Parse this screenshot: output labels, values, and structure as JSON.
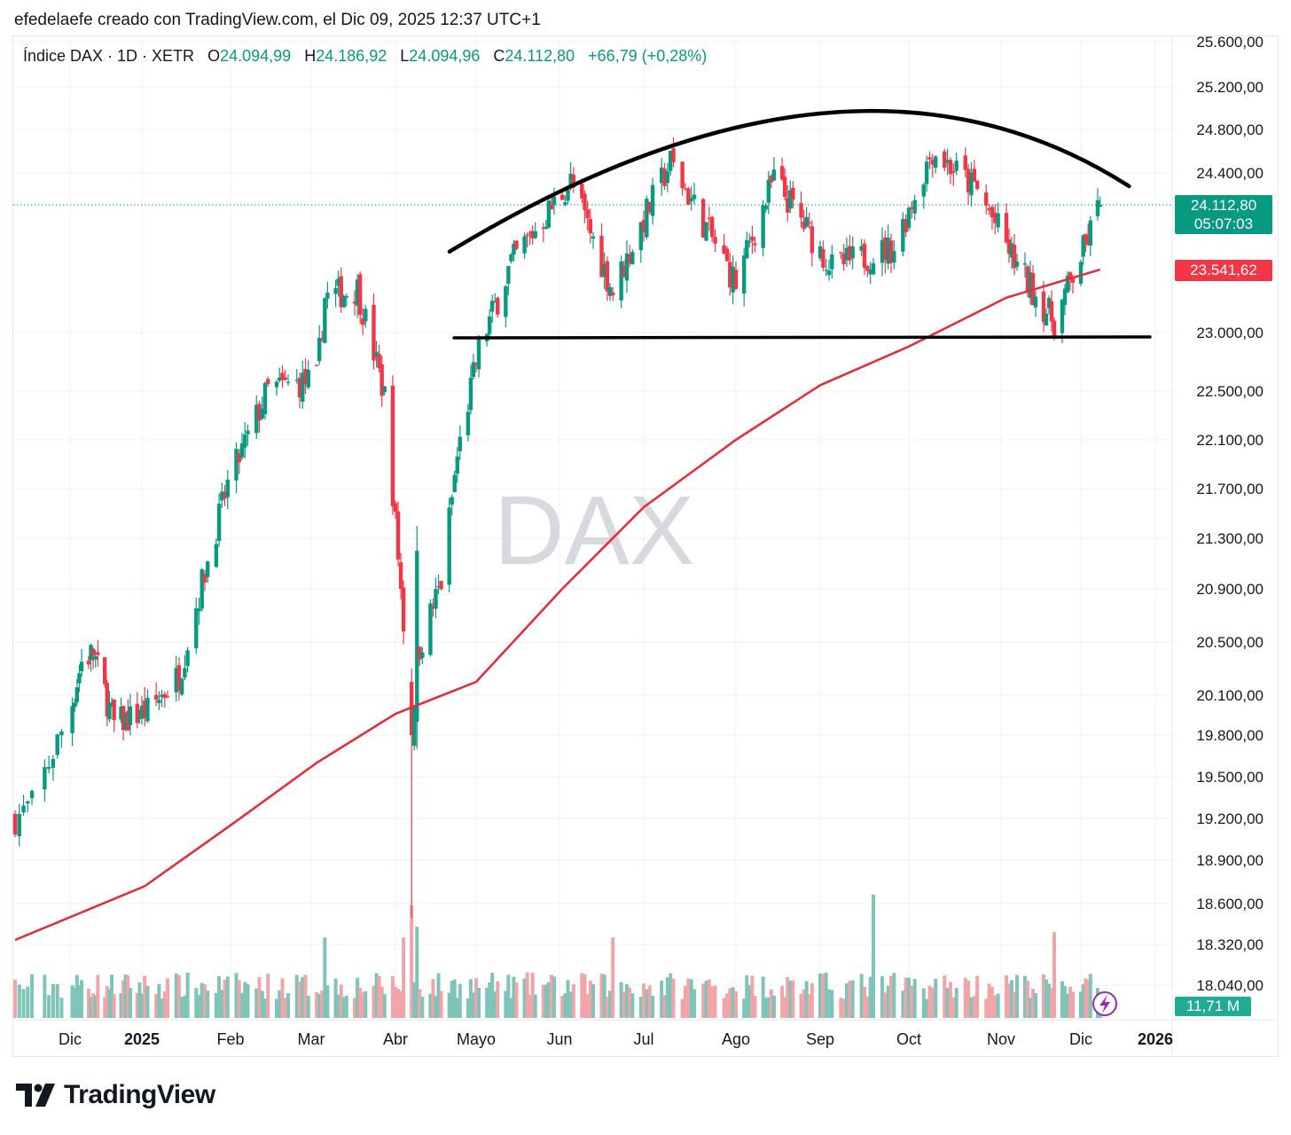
{
  "header": {
    "caption": "efedelaefe creado con TradingView.com, el Dic 09, 2025 12:37 UTC+1"
  },
  "legend": {
    "symbol": "Índice DAX · 1D · XETR",
    "open_label": "O",
    "open": "24.094,99",
    "high_label": "H",
    "high": "24.186,92",
    "low_label": "L",
    "low": "24.094,96",
    "close_label": "C",
    "close": "24.112,80",
    "change": "+66,79 (+0,28%)"
  },
  "watermark": "DAX",
  "price_tags": {
    "last_price": "24.112,80",
    "countdown": "05:07:03",
    "ma_value": "23.541,62",
    "volume": "11,71 M"
  },
  "footer": {
    "brand": "TradingView"
  },
  "colors": {
    "up": "#089981",
    "down": "#f23645",
    "ma": "#e0303e",
    "vol_up": "#7fc4b8",
    "vol_down": "#f2a5a9",
    "trendline": "#000000"
  },
  "chart_data": {
    "type": "candlestick",
    "title": "Índice DAX · 1D · XETR",
    "xlabel": "",
    "ylabel": "",
    "y_axis_ticks": [
      "25.600,00",
      "25.200,00",
      "24.800,00",
      "24.400,00",
      "23.000,00",
      "22.500,00",
      "22.100,00",
      "21.700,00",
      "21.300,00",
      "20.900,00",
      "20.500,00",
      "20.100,00",
      "19.800,00",
      "19.500,00",
      "19.200,00",
      "18.900,00",
      "18.600,00",
      "18.320,00",
      "18.040,00"
    ],
    "y_axis_values": [
      25600,
      25200,
      24800,
      24400,
      23000,
      22500,
      22100,
      21700,
      21300,
      20900,
      20500,
      20100,
      19800,
      19500,
      19200,
      18900,
      18600,
      18320,
      18040
    ],
    "x_axis_ticks": [
      "Dic",
      "2025",
      "Feb",
      "Mar",
      "Abr",
      "Mayo",
      "Jun",
      "Jul",
      "Ago",
      "Sep",
      "Oct",
      "Nov",
      "Dic",
      "2026"
    ],
    "x_axis_bold": [
      "2025",
      "2026"
    ],
    "last_price": 24112.8,
    "ma_last": 23541.62,
    "series_close_keypoints": [
      {
        "date": "2024-11-18",
        "close": 19200
      },
      {
        "date": "2024-11-22",
        "close": 19300
      },
      {
        "date": "2024-12-06",
        "close": 20350
      },
      {
        "date": "2024-12-11",
        "close": 20420
      },
      {
        "date": "2024-12-20",
        "close": 19880
      },
      {
        "date": "2025-01-03",
        "close": 19980
      },
      {
        "date": "2025-01-14",
        "close": 20250
      },
      {
        "date": "2025-01-31",
        "close": 21730
      },
      {
        "date": "2025-02-14",
        "close": 22510
      },
      {
        "date": "2025-03-03",
        "close": 22600
      },
      {
        "date": "2025-03-06",
        "close": 23300
      },
      {
        "date": "2025-03-18",
        "close": 23380
      },
      {
        "date": "2025-03-28",
        "close": 22460
      },
      {
        "date": "2025-04-04",
        "close": 20640
      },
      {
        "date": "2025-04-07",
        "close": 19790
      },
      {
        "date": "2025-04-09",
        "close": 20400
      },
      {
        "date": "2025-04-18",
        "close": 20950
      },
      {
        "date": "2025-04-24",
        "close": 21960
      },
      {
        "date": "2025-05-02",
        "close": 22850
      },
      {
        "date": "2025-05-14",
        "close": 23600
      },
      {
        "date": "2025-06-05",
        "close": 24320
      },
      {
        "date": "2025-06-20",
        "close": 23350
      },
      {
        "date": "2025-07-10",
        "close": 24500
      },
      {
        "date": "2025-08-01",
        "close": 23420
      },
      {
        "date": "2025-08-15",
        "close": 24350
      },
      {
        "date": "2025-09-05",
        "close": 23560
      },
      {
        "date": "2025-09-26",
        "close": 23740
      },
      {
        "date": "2025-10-09",
        "close": 24610
      },
      {
        "date": "2025-10-24",
        "close": 24240
      },
      {
        "date": "2025-11-07",
        "close": 23570
      },
      {
        "date": "2025-11-21",
        "close": 23090
      },
      {
        "date": "2025-12-02",
        "close": 23710
      },
      {
        "date": "2025-12-09",
        "close": 24112.8
      }
    ],
    "moving_average_keypoints": [
      {
        "date": "2024-11-18",
        "value": 18350
      },
      {
        "date": "2025-01-02",
        "value": 18720
      },
      {
        "date": "2025-02-03",
        "value": 19180
      },
      {
        "date": "2025-03-03",
        "value": 19600
      },
      {
        "date": "2025-04-01",
        "value": 19960
      },
      {
        "date": "2025-05-01",
        "value": 20200
      },
      {
        "date": "2025-06-02",
        "value": 20900
      },
      {
        "date": "2025-07-01",
        "value": 21550
      },
      {
        "date": "2025-08-01",
        "value": 22100
      },
      {
        "date": "2025-09-01",
        "value": 22550
      },
      {
        "date": "2025-10-01",
        "value": 22880
      },
      {
        "date": "2025-11-03",
        "value": 23300
      },
      {
        "date": "2025-12-09",
        "value": 23541.62
      }
    ],
    "annotations": [
      {
        "type": "arc",
        "label": "rounded top (dome) resistance",
        "from": {
          "date": "2025-05-01",
          "price": 23700
        },
        "peak": {
          "date": "2025-09-01",
          "price": 24950
        },
        "to": {
          "date": "2025-12-10",
          "price": 24280
        }
      },
      {
        "type": "horizontal",
        "label": "support",
        "price": 23000,
        "from_date": "2025-05-01",
        "to_date": "2025-12-15"
      }
    ]
  }
}
